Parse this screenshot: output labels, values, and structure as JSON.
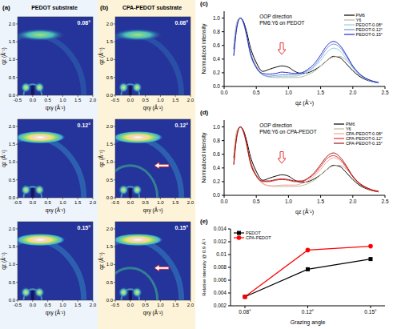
{
  "giwaxs": {
    "xlabel": "qxy (Å⁻¹)",
    "ylabel": "qz (Å⁻¹)",
    "xlim": [
      -0.5,
      2.0
    ],
    "ylim": [
      0,
      2.2
    ],
    "xticks": [
      -0.5,
      {
        "value": 0,
        "label": "0.0"
      },
      0.5,
      {
        "value": 1,
        "label": "1.0"
      },
      1.5,
      {
        "value": 2,
        "label": "2.0"
      }
    ],
    "yticks": [
      {
        "value": 0,
        "label": "0.0"
      },
      0.5,
      {
        "value": 1,
        "label": "1.0"
      },
      1.5,
      {
        "value": 2,
        "label": "2.0"
      }
    ],
    "panels": [
      {
        "label": "(a)",
        "title": "PEDOT substrate",
        "angles": [
          "0.08°",
          "0.12°",
          "0.15°"
        ]
      },
      {
        "label": "(b)",
        "title": "CPA-PEDOT substrate",
        "angles": [
          "0.08°",
          "0.12°",
          "0.15°"
        ]
      }
    ]
  },
  "chart_data": [
    {
      "type": "line",
      "label": "(c)",
      "annotations": [
        "OOP direction",
        "PM6:Y6 on PEDOT"
      ],
      "xlabel": "qz (Å⁻¹)",
      "ylabel": "Normalized intensity",
      "xlim": [
        0,
        2.5
      ],
      "ylim": [
        0,
        1.1
      ],
      "xticks": [
        {
          "value": 0,
          "label": "0.0"
        },
        0.5,
        {
          "value": 1,
          "label": "1.0"
        },
        1.5,
        {
          "value": 2,
          "label": "2.0"
        },
        2.5
      ],
      "yticks": [
        {
          "value": 0,
          "label": "0.0"
        },
        0.2,
        0.4,
        0.6,
        0.8,
        {
          "value": 1,
          "label": "1.0"
        }
      ],
      "legend": "upper right",
      "x": [
        0.15,
        0.2,
        0.25,
        0.3,
        0.35,
        0.4,
        0.5,
        0.6,
        0.7,
        0.8,
        0.9,
        1.0,
        1.1,
        1.2,
        1.3,
        1.4,
        1.5,
        1.6,
        1.7,
        1.8,
        1.9,
        2.0,
        2.1,
        2.2,
        2.3,
        2.4
      ],
      "series": [
        {
          "name": "PM6",
          "color": "#000000",
          "values": [
            0.55,
            0.9,
            1.0,
            0.95,
            0.8,
            0.6,
            0.35,
            0.22,
            0.25,
            0.28,
            0.3,
            0.28,
            0.22,
            0.19,
            0.2,
            0.24,
            0.3,
            0.38,
            0.44,
            0.42,
            0.33,
            0.23,
            0.15,
            0.1,
            0.07,
            0.05
          ]
        },
        {
          "name": "Y6",
          "color": "#c2b89c",
          "values": [
            0.6,
            0.95,
            1.0,
            0.92,
            0.75,
            0.55,
            0.3,
            0.18,
            0.14,
            0.13,
            0.13,
            0.13,
            0.13,
            0.14,
            0.17,
            0.22,
            0.3,
            0.38,
            0.43,
            0.44,
            0.38,
            0.28,
            0.18,
            0.12,
            0.08,
            0.06
          ]
        },
        {
          "name": "PEDOT-0.08°",
          "color": "#8fd0ea",
          "values": [
            0.5,
            0.9,
            1.0,
            0.93,
            0.75,
            0.52,
            0.28,
            0.17,
            0.14,
            0.14,
            0.15,
            0.15,
            0.15,
            0.17,
            0.21,
            0.28,
            0.38,
            0.5,
            0.56,
            0.52,
            0.4,
            0.27,
            0.17,
            0.11,
            0.07,
            0.05
          ]
        },
        {
          "name": "PEDOT-0.12°",
          "color": "#6f93d8",
          "values": [
            0.45,
            0.88,
            1.0,
            0.93,
            0.74,
            0.5,
            0.27,
            0.17,
            0.15,
            0.16,
            0.17,
            0.17,
            0.17,
            0.19,
            0.23,
            0.3,
            0.42,
            0.56,
            0.62,
            0.57,
            0.44,
            0.29,
            0.18,
            0.12,
            0.08,
            0.06
          ]
        },
        {
          "name": "PEDOT-0.15°",
          "color": "#2626d0",
          "values": [
            0.45,
            0.87,
            1.0,
            0.94,
            0.76,
            0.52,
            0.28,
            0.19,
            0.18,
            0.19,
            0.21,
            0.2,
            0.19,
            0.2,
            0.25,
            0.33,
            0.46,
            0.6,
            0.66,
            0.6,
            0.46,
            0.3,
            0.19,
            0.12,
            0.08,
            0.06
          ]
        }
      ]
    },
    {
      "type": "line",
      "label": "(d)",
      "annotations": [
        "OOP direction",
        "PM6:Y6 on CPA-PEDOT"
      ],
      "xlabel": "qz (Å⁻¹)",
      "ylabel": "Normalized intensity",
      "xlim": [
        0,
        2.5
      ],
      "ylim": [
        0,
        1.1
      ],
      "xticks": [
        {
          "value": 0,
          "label": "0.0"
        },
        0.5,
        {
          "value": 1,
          "label": "1.0"
        },
        1.5,
        {
          "value": 2,
          "label": "2.0"
        },
        2.5
      ],
      "yticks": [
        {
          "value": 0,
          "label": "0.0"
        },
        0.2,
        0.4,
        0.6,
        0.8,
        {
          "value": 1,
          "label": "1.0"
        }
      ],
      "legend": "upper right",
      "x": [
        0.15,
        0.2,
        0.25,
        0.3,
        0.35,
        0.4,
        0.5,
        0.6,
        0.7,
        0.8,
        0.9,
        1.0,
        1.1,
        1.2,
        1.3,
        1.4,
        1.5,
        1.6,
        1.7,
        1.8,
        1.9,
        2.0,
        2.1,
        2.2,
        2.3,
        2.4
      ],
      "series": [
        {
          "name": "PM6",
          "color": "#000000",
          "values": [
            0.55,
            0.9,
            1.0,
            0.95,
            0.8,
            0.6,
            0.35,
            0.22,
            0.25,
            0.28,
            0.3,
            0.28,
            0.22,
            0.19,
            0.2,
            0.24,
            0.3,
            0.38,
            0.44,
            0.42,
            0.33,
            0.23,
            0.15,
            0.1,
            0.07,
            0.05
          ]
        },
        {
          "name": "Y6",
          "color": "#c2b89c",
          "values": [
            0.6,
            0.95,
            1.0,
            0.92,
            0.75,
            0.55,
            0.3,
            0.18,
            0.14,
            0.13,
            0.13,
            0.13,
            0.13,
            0.14,
            0.17,
            0.22,
            0.3,
            0.38,
            0.43,
            0.44,
            0.38,
            0.28,
            0.18,
            0.12,
            0.08,
            0.06
          ]
        },
        {
          "name": "CPA-PEDOT-0.08°",
          "color": "#f4a3a0",
          "values": [
            0.5,
            0.9,
            1.0,
            0.93,
            0.75,
            0.52,
            0.28,
            0.17,
            0.14,
            0.14,
            0.15,
            0.15,
            0.15,
            0.17,
            0.21,
            0.28,
            0.38,
            0.49,
            0.55,
            0.51,
            0.4,
            0.27,
            0.17,
            0.11,
            0.07,
            0.05
          ]
        },
        {
          "name": "CPA-PEDOT-0.12°",
          "color": "#e8342a",
          "values": [
            0.45,
            0.88,
            1.0,
            0.93,
            0.74,
            0.5,
            0.28,
            0.2,
            0.2,
            0.22,
            0.23,
            0.22,
            0.2,
            0.2,
            0.24,
            0.31,
            0.42,
            0.54,
            0.58,
            0.53,
            0.41,
            0.27,
            0.17,
            0.11,
            0.07,
            0.05
          ]
        },
        {
          "name": "CPA-PEDOT-0.15°",
          "color": "#a01414",
          "values": [
            0.45,
            0.87,
            1.0,
            0.94,
            0.76,
            0.52,
            0.29,
            0.21,
            0.21,
            0.23,
            0.24,
            0.23,
            0.21,
            0.21,
            0.25,
            0.33,
            0.45,
            0.57,
            0.62,
            0.56,
            0.43,
            0.28,
            0.18,
            0.12,
            0.08,
            0.06
          ]
        }
      ]
    },
    {
      "type": "line",
      "label": "(e)",
      "xlabel": "Grazing angle",
      "ylabel": "Relative intensity @ 0.9 Å⁻¹",
      "categories": [
        "0.08°",
        "0.12°",
        "0.15°"
      ],
      "ylim": [
        0.002,
        0.014
      ],
      "yticks": [
        0.002,
        0.004,
        0.006,
        0.008,
        0.01,
        0.012,
        0.014
      ],
      "legend": "upper left",
      "series": [
        {
          "name": "PEDOT",
          "color": "#000000",
          "marker": "square",
          "values": [
            0.0034,
            0.0077,
            0.0093
          ]
        },
        {
          "name": "CPA-PEDOT",
          "color": "#ff0000",
          "marker": "circle",
          "values": [
            0.0034,
            0.0107,
            0.0113
          ]
        }
      ]
    }
  ]
}
